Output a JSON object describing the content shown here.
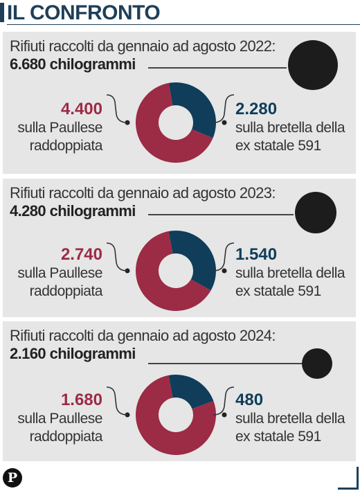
{
  "header": {
    "title": "IL CONFRONTO"
  },
  "colors": {
    "paullese": "#9c2b45",
    "bretella": "#0f3d5a",
    "accent": "#1f3f58",
    "panel": "#e6e6e6"
  },
  "panels": [
    {
      "lead": "Rifiuti raccolti da gennaio ad agosto 2022:",
      "total": "6.680 chilogrammi",
      "left_value": "4.400",
      "left_desc": "sulla Paullese raddoppiata",
      "right_value": "2.280",
      "right_desc": "sulla bretella della ex statale 591"
    },
    {
      "lead": "Rifiuti raccolti da gennaio ad agosto 2023:",
      "total": "4.280 chilogrammi",
      "left_value": "2.740",
      "left_desc": "sulla Paullese raddoppiata",
      "right_value": "1.540",
      "right_desc": "sulla bretella della ex statale 591"
    },
    {
      "lead": "Rifiuti raccolti da gennaio ad agosto 2024:",
      "total": "2.160 chilogrammi",
      "left_value": "1.680",
      "left_desc": "sulla Paullese raddoppiata",
      "right_value": "480",
      "right_desc": "sulla bretella della ex statale 591"
    }
  ],
  "logo": {
    "text": "P"
  },
  "chart_data": [
    {
      "type": "pie",
      "donut": true,
      "year": "2022",
      "total": 6680,
      "unit": "chilogrammi",
      "slices": [
        {
          "label": "sulla Paullese raddoppiata",
          "value": 4400,
          "color": "#9c2b45"
        },
        {
          "label": "sulla bretella della ex statale 591",
          "value": 2280,
          "color": "#0f3d5a"
        }
      ]
    },
    {
      "type": "pie",
      "donut": true,
      "year": "2023",
      "total": 4280,
      "unit": "chilogrammi",
      "slices": [
        {
          "label": "sulla Paullese raddoppiata",
          "value": 2740,
          "color": "#9c2b45"
        },
        {
          "label": "sulla bretella della ex statale 591",
          "value": 1540,
          "color": "#0f3d5a"
        }
      ]
    },
    {
      "type": "pie",
      "donut": true,
      "year": "2024",
      "total": 2160,
      "unit": "chilogrammi",
      "slices": [
        {
          "label": "sulla Paullese raddoppiata",
          "value": 1680,
          "color": "#9c2b45"
        },
        {
          "label": "sulla bretella della ex statale 591",
          "value": 480,
          "color": "#0f3d5a"
        }
      ]
    }
  ]
}
